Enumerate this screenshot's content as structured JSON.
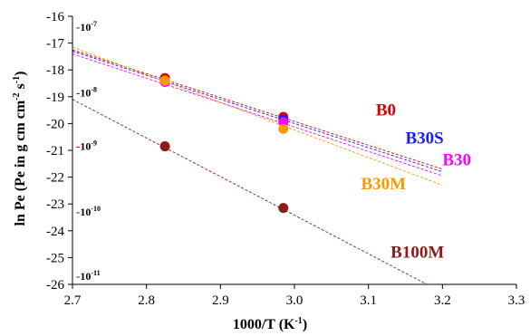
{
  "chart_data": {
    "type": "scatter",
    "title": "",
    "xlabel": "1000/T (K",
    "xlabel_sup": "-1",
    "xlabel_end": ")",
    "ylabel": "ln Pe  (Pe in g cm cm",
    "ylabel_sup1": "-2",
    "ylabel_mid": " s",
    "ylabel_sup2": "-1",
    "ylabel_end": ")",
    "xlim": [
      2.7,
      3.3
    ],
    "ylim": [
      -26,
      -16
    ],
    "x_ticks": [
      "2.7",
      "2.8",
      "2.9",
      "3.0",
      "3.1",
      "3.2",
      "3.3"
    ],
    "y_ticks": [
      "-16",
      "-17",
      "-18",
      "-19",
      "-20",
      "-21",
      "-22",
      "-23",
      "-24",
      "-25",
      "-26"
    ],
    "grid": false,
    "series": [
      {
        "name": "B0",
        "color": "#e00000",
        "x": [
          2.825,
          2.985
        ],
        "y": [
          -18.3,
          -19.75
        ],
        "trend": {
          "x": [
            2.7,
            3.2
          ],
          "y": [
            -17.25,
            -21.7
          ]
        }
      },
      {
        "name": "B30S",
        "color": "#1a1aff",
        "x": [
          2.825,
          2.985
        ],
        "y": [
          -18.4,
          -19.85
        ],
        "trend": {
          "x": [
            2.7,
            3.2
          ],
          "y": [
            -17.3,
            -21.8
          ]
        }
      },
      {
        "name": "B30",
        "color": "#ff00ff",
        "x": [
          2.825,
          2.985
        ],
        "y": [
          -18.45,
          -19.95
        ],
        "trend": {
          "x": [
            2.7,
            3.2
          ],
          "y": [
            -17.4,
            -21.95
          ]
        }
      },
      {
        "name": "B30M",
        "color": "#ff9900",
        "x": [
          2.825,
          2.985
        ],
        "y": [
          -18.4,
          -20.2
        ],
        "trend": {
          "x": [
            2.7,
            3.2
          ],
          "y": [
            -17.15,
            -22.3
          ]
        }
      },
      {
        "name": "B100M",
        "color": "#8b1a1a",
        "x": [
          2.825,
          2.985
        ],
        "y": [
          -20.85,
          -23.15
        ],
        "trend": {
          "x": [
            2.7,
            3.2
          ],
          "y": [
            -19.1,
            -26.3
          ]
        }
      }
    ],
    "annotations": [
      {
        "base": "10",
        "exp": "-7",
        "y": -16.4
      },
      {
        "base": "10",
        "exp": "-8",
        "y": -18.85
      },
      {
        "base": "10",
        "exp": "-9",
        "y": -20.85
      },
      {
        "base": "10",
        "exp": "-10",
        "y": -23.3
      },
      {
        "base": "10",
        "exp": "-11",
        "y": -25.7
      }
    ],
    "legend_labels": [
      {
        "text": "B0",
        "color": "#e00000",
        "x": 3.11,
        "y": -19.7
      },
      {
        "text": "B30S",
        "color": "#1a1aff",
        "x": 3.15,
        "y": -20.75
      },
      {
        "text": "B30",
        "color": "#ff00ff",
        "x": 3.2,
        "y": -21.55
      },
      {
        "text": "B30M",
        "color": "#ff9900",
        "x": 3.09,
        "y": -22.45
      },
      {
        "text": "B100M",
        "color": "#8b1a1a",
        "x": 3.13,
        "y": -25.0
      }
    ]
  }
}
